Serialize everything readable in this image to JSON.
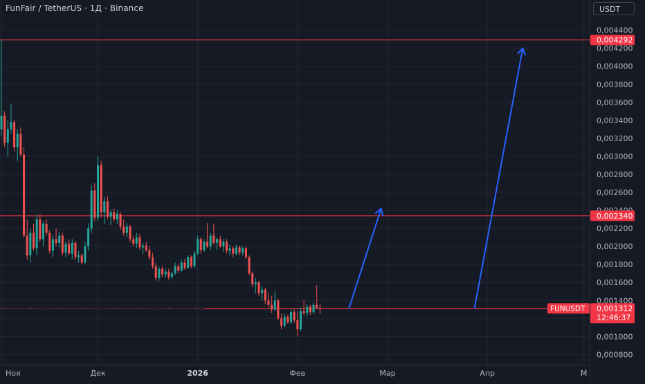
{
  "header": {
    "title": "FunFair / TetherUS · 1Д · Binance",
    "currency": "USDT"
  },
  "chart_data": {
    "type": "candlestick",
    "symbol": "FUNUSDT",
    "ylim": [
      0.00068,
      0.00452
    ],
    "y_ticks": [
      "0,000800",
      "0,001000",
      "0,001200",
      "0,001400",
      "0,001600",
      "0,001800",
      "0,002000",
      "0,002200",
      "0,002400",
      "0,002600",
      "0,002800",
      "0,003000",
      "0,003200",
      "0,003400",
      "0,003600",
      "0,003800",
      "0,004000",
      "0,004200",
      "0,004400"
    ],
    "x_ticks": [
      {
        "label": "Ноя",
        "day": 0,
        "bold": false
      },
      {
        "label": "Дек",
        "day": 30,
        "bold": false
      },
      {
        "label": "2026",
        "day": 61,
        "bold": true
      },
      {
        "label": "Фев",
        "day": 92,
        "bold": false
      },
      {
        "label": "Мар",
        "day": 120,
        "bold": false
      },
      {
        "label": "Апр",
        "day": 151,
        "bold": false
      },
      {
        "label": "М",
        "day": 181,
        "bold": false
      }
    ],
    "candles": [
      [
        0.0033,
        0.0043,
        0.00322,
        0.00345
      ],
      [
        0.00345,
        0.0035,
        0.0031,
        0.00315
      ],
      [
        0.00315,
        0.0034,
        0.003,
        0.0033
      ],
      [
        0.0033,
        0.00358,
        0.00325,
        0.00338
      ],
      [
        0.00338,
        0.0034,
        0.00305,
        0.0031
      ],
      [
        0.0031,
        0.0033,
        0.00295,
        0.00325
      ],
      [
        0.00325,
        0.00332,
        0.003,
        0.00302
      ],
      [
        0.00302,
        0.0031,
        0.0021,
        0.00212
      ],
      [
        0.00212,
        0.0023,
        0.00185,
        0.0019
      ],
      [
        0.0019,
        0.0022,
        0.00182,
        0.00215
      ],
      [
        0.00215,
        0.00225,
        0.00195,
        0.00198
      ],
      [
        0.00198,
        0.00235,
        0.0019,
        0.0023
      ],
      [
        0.0023,
        0.00236,
        0.00205,
        0.00208
      ],
      [
        0.00208,
        0.00228,
        0.002,
        0.00225
      ],
      [
        0.00225,
        0.0023,
        0.00212,
        0.00215
      ],
      [
        0.00215,
        0.00218,
        0.00192,
        0.00195
      ],
      [
        0.00195,
        0.00212,
        0.00188,
        0.00208
      ],
      [
        0.00208,
        0.0022,
        0.002,
        0.00204
      ],
      [
        0.00204,
        0.00216,
        0.00198,
        0.00212
      ],
      [
        0.00212,
        0.00215,
        0.0019,
        0.00193
      ],
      [
        0.00193,
        0.00206,
        0.00188,
        0.00203
      ],
      [
        0.00203,
        0.00208,
        0.0019,
        0.00192
      ],
      [
        0.00192,
        0.00208,
        0.00186,
        0.00204
      ],
      [
        0.00204,
        0.00206,
        0.00185,
        0.00188
      ],
      [
        0.00188,
        0.00195,
        0.00182,
        0.0019
      ],
      [
        0.0019,
        0.00192,
        0.0018,
        0.00182
      ],
      [
        0.00182,
        0.00205,
        0.00181,
        0.002
      ],
      [
        0.002,
        0.00225,
        0.00195,
        0.0022
      ],
      [
        0.0022,
        0.00268,
        0.00215,
        0.00262
      ],
      [
        0.00262,
        0.0027,
        0.00228,
        0.00232
      ],
      [
        0.00232,
        0.003,
        0.00228,
        0.0029
      ],
      [
        0.0029,
        0.00295,
        0.00232,
        0.00238
      ],
      [
        0.00238,
        0.00255,
        0.00225,
        0.0025
      ],
      [
        0.0025,
        0.00256,
        0.0023,
        0.00233
      ],
      [
        0.00233,
        0.0024,
        0.00224,
        0.00238
      ],
      [
        0.00238,
        0.00242,
        0.00228,
        0.0023
      ],
      [
        0.0023,
        0.0024,
        0.00225,
        0.00236
      ],
      [
        0.00236,
        0.00238,
        0.00218,
        0.00222
      ],
      [
        0.00222,
        0.0023,
        0.00212,
        0.00215
      ],
      [
        0.00215,
        0.00226,
        0.0021,
        0.00222
      ],
      [
        0.00222,
        0.00224,
        0.00205,
        0.00208
      ],
      [
        0.00208,
        0.00212,
        0.002,
        0.00203
      ],
      [
        0.00203,
        0.00215,
        0.00198,
        0.0021
      ],
      [
        0.0021,
        0.00214,
        0.00196,
        0.00199
      ],
      [
        0.00199,
        0.00204,
        0.00192,
        0.00201
      ],
      [
        0.00201,
        0.00205,
        0.00194,
        0.00196
      ],
      [
        0.00196,
        0.002,
        0.00185,
        0.00188
      ],
      [
        0.00188,
        0.00193,
        0.00175,
        0.00178
      ],
      [
        0.00178,
        0.00182,
        0.00162,
        0.00165
      ],
      [
        0.00165,
        0.00178,
        0.00162,
        0.00175
      ],
      [
        0.00175,
        0.00178,
        0.00166,
        0.00169
      ],
      [
        0.00169,
        0.00175,
        0.00165,
        0.00172
      ],
      [
        0.00172,
        0.00175,
        0.00163,
        0.00166
      ],
      [
        0.00166,
        0.00172,
        0.00164,
        0.0017
      ],
      [
        0.0017,
        0.00182,
        0.00168,
        0.00178
      ],
      [
        0.00178,
        0.0018,
        0.0017,
        0.00173
      ],
      [
        0.00173,
        0.00185,
        0.00172,
        0.00182
      ],
      [
        0.00182,
        0.00186,
        0.00174,
        0.00176
      ],
      [
        0.00176,
        0.0019,
        0.00175,
        0.00188
      ],
      [
        0.00188,
        0.0019,
        0.00176,
        0.00178
      ],
      [
        0.00178,
        0.00195,
        0.00176,
        0.00192
      ],
      [
        0.00192,
        0.00212,
        0.0019,
        0.00208
      ],
      [
        0.00208,
        0.0021,
        0.00192,
        0.00196
      ],
      [
        0.00196,
        0.00208,
        0.00194,
        0.00205
      ],
      [
        0.00205,
        0.00226,
        0.00198,
        0.002
      ],
      [
        0.002,
        0.00215,
        0.00196,
        0.00212
      ],
      [
        0.00212,
        0.00225,
        0.00202,
        0.00204
      ],
      [
        0.00204,
        0.0021,
        0.00196,
        0.00208
      ],
      [
        0.00208,
        0.00212,
        0.00198,
        0.002
      ],
      [
        0.002,
        0.00208,
        0.00194,
        0.00205
      ],
      [
        0.00205,
        0.00208,
        0.00192,
        0.00195
      ],
      [
        0.00195,
        0.00202,
        0.0019,
        0.00198
      ],
      [
        0.00198,
        0.002,
        0.00188,
        0.00192
      ],
      [
        0.00192,
        0.00202,
        0.0019,
        0.00199
      ],
      [
        0.00199,
        0.00201,
        0.0019,
        0.00193
      ],
      [
        0.00193,
        0.002,
        0.0019,
        0.00198
      ],
      [
        0.00198,
        0.002,
        0.00186,
        0.00188
      ],
      [
        0.00188,
        0.0019,
        0.00168,
        0.0017
      ],
      [
        0.0017,
        0.00172,
        0.00155,
        0.00158
      ],
      [
        0.00158,
        0.00165,
        0.00148,
        0.0016
      ],
      [
        0.0016,
        0.00162,
        0.00145,
        0.00148
      ],
      [
        0.00148,
        0.00155,
        0.0014,
        0.00152
      ],
      [
        0.00152,
        0.00154,
        0.00136,
        0.0014
      ],
      [
        0.0014,
        0.00148,
        0.00132,
        0.00135
      ],
      [
        0.00135,
        0.00145,
        0.00126,
        0.0013
      ],
      [
        0.0013,
        0.0015,
        0.00128,
        0.0014
      ],
      [
        0.0014,
        0.00142,
        0.00118,
        0.0012
      ],
      [
        0.0012,
        0.00125,
        0.00108,
        0.00112
      ],
      [
        0.00112,
        0.00125,
        0.0011,
        0.00122
      ],
      [
        0.00122,
        0.00124,
        0.00114,
        0.00116
      ],
      [
        0.00116,
        0.0013,
        0.00114,
        0.00127
      ],
      [
        0.00127,
        0.0013,
        0.00115,
        0.00118
      ],
      [
        0.00118,
        0.00128,
        0.001,
        0.00108
      ],
      [
        0.00108,
        0.00132,
        0.00106,
        0.00128
      ],
      [
        0.00128,
        0.0014,
        0.00124,
        0.00126
      ],
      [
        0.00126,
        0.00136,
        0.00122,
        0.00133
      ],
      [
        0.00133,
        0.00135,
        0.00124,
        0.00127
      ],
      [
        0.00127,
        0.00138,
        0.00125,
        0.00135
      ],
      [
        0.00135,
        0.00157,
        0.0013,
        0.00132
      ],
      [
        0.00132,
        0.00136,
        0.00125,
        0.00131
      ]
    ],
    "price_lines": [
      {
        "value": 0.004292,
        "label": "0,004292"
      },
      {
        "value": 0.00234,
        "label": "0,002340"
      }
    ],
    "current": {
      "value": 0.001312,
      "label": "0,001312",
      "symbol": "FUNUSDT",
      "countdown": "12:46:37"
    },
    "horizontal_ray": {
      "value": 0.001312,
      "from_day": 63
    },
    "arrows": [
      {
        "from_day": 108,
        "from_value": 0.00131,
        "to_day": 118,
        "to_value": 0.00242
      },
      {
        "from_day": 147,
        "from_value": 0.00131,
        "to_day": 162,
        "to_value": 0.0042
      }
    ],
    "colors": {
      "up": "#26a69a",
      "down": "#ef5350",
      "grid": "#242733",
      "price_line": "#f23645",
      "arrow": "#2962ff",
      "text": "#b2b5be",
      "background": "#161a25"
    }
  }
}
